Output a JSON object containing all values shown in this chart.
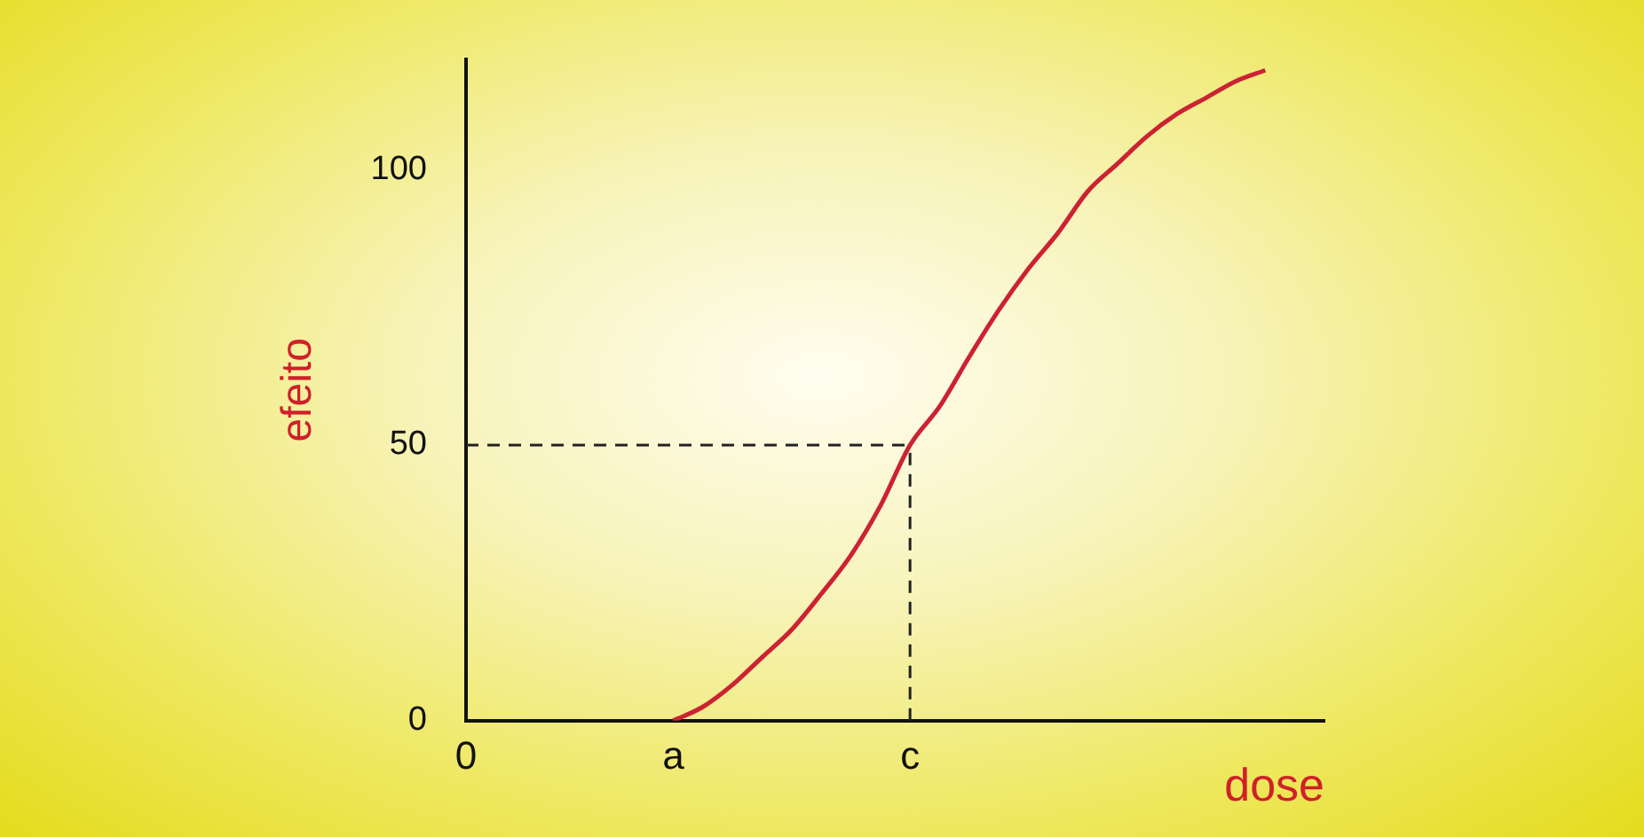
{
  "chart_data": {
    "type": "line",
    "xlabel": "dose",
    "ylabel": "efeito",
    "categories": [
      "0",
      null,
      null,
      null,
      null,
      null,
      null,
      "a",
      null,
      null,
      null,
      null,
      null,
      null,
      null,
      "c",
      null,
      null,
      null,
      null,
      null,
      null,
      null,
      null,
      null,
      null,
      null,
      null,
      null,
      null
    ],
    "ylim": [
      0,
      120
    ],
    "yticks": [
      0,
      50,
      100
    ],
    "grid": false,
    "legend": false,
    "marker": "none",
    "line_style": "solid",
    "ref_lines": [
      {
        "axis": "y",
        "value": 50,
        "line_style": "dashed",
        "color": "#222222"
      },
      {
        "axis": "x",
        "value": "c",
        "line_style": "dashed",
        "color": "#222222"
      }
    ],
    "series": [
      {
        "color": "#cc2233",
        "values": [
          null,
          null,
          null,
          null,
          null,
          null,
          null,
          0,
          2.5,
          6.5,
          11.5,
          16.5,
          23,
          30,
          39,
          50,
          57,
          66,
          74.5,
          82,
          88.5,
          96,
          101,
          106,
          110,
          113,
          116,
          118,
          null,
          null
        ]
      }
    ]
  }
}
